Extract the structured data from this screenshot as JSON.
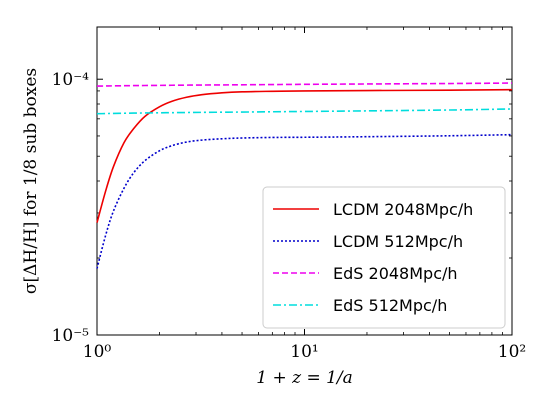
{
  "chart_data": {
    "type": "line",
    "xlabel": "1 + z = 1/a",
    "ylabel": "σ[ΔH/H] for 1/8 sub boxes",
    "xscale": "log",
    "yscale": "log",
    "xlim": [
      1,
      100
    ],
    "ylim": [
      1e-05,
      0.00016
    ],
    "grid": false,
    "legend_position": "lower-right",
    "x_ticks": [
      {
        "value": 1,
        "label": "10⁰"
      },
      {
        "value": 10,
        "label": "10¹"
      },
      {
        "value": 100,
        "label": "10²"
      }
    ],
    "y_ticks": [
      {
        "value": 1e-05,
        "label": "10⁻⁵"
      },
      {
        "value": 0.0001,
        "label": "10⁻⁴"
      }
    ],
    "x": [
      1.0,
      1.1,
      1.2,
      1.35,
      1.5,
      1.7,
      2.0,
      2.3,
      2.7,
      3.2,
      4,
      5,
      7,
      10,
      20,
      50,
      100
    ],
    "series": [
      {
        "name": "LCDM 2048Mpc/h",
        "color": "#ee0000",
        "dash": "solid",
        "values": [
          2.75e-05,
          3.65e-05,
          4.55e-05,
          5.65e-05,
          6.4e-05,
          7.15e-05,
          7.8e-05,
          8.2e-05,
          8.5e-05,
          8.7e-05,
          8.85e-05,
          8.93e-05,
          8.97e-05,
          9e-05,
          9.03e-05,
          9.06e-05,
          9.1e-05
        ]
      },
      {
        "name": "LCDM 512Mpc/h",
        "color": "#0000cc",
        "dash": "dotted",
        "values": [
          1.82e-05,
          2.45e-05,
          3.05e-05,
          3.75e-05,
          4.3e-05,
          4.8e-05,
          5.25e-05,
          5.5e-05,
          5.68e-05,
          5.78e-05,
          5.85e-05,
          5.89e-05,
          5.92e-05,
          5.93e-05,
          5.96e-05,
          6.01e-05,
          6.07e-05
        ]
      },
      {
        "name": "EdS 2048Mpc/h",
        "color": "#ee00ee",
        "dash": "dashed",
        "values": [
          9.4e-05,
          9.41e-05,
          9.42e-05,
          9.43e-05,
          9.44e-05,
          9.45e-05,
          9.46e-05,
          9.47e-05,
          9.48e-05,
          9.49e-05,
          9.5e-05,
          9.51e-05,
          9.53e-05,
          9.55e-05,
          9.58e-05,
          9.62e-05,
          9.66e-05
        ]
      },
      {
        "name": "EdS 512Mpc/h",
        "color": "#00dddd",
        "dash": "dashdot",
        "values": [
          7.33e-05,
          7.34e-05,
          7.35e-05,
          7.36e-05,
          7.37e-05,
          7.38e-05,
          7.39e-05,
          7.4e-05,
          7.41e-05,
          7.42e-05,
          7.43e-05,
          7.44e-05,
          7.46e-05,
          7.48e-05,
          7.52e-05,
          7.58e-05,
          7.65e-05
        ]
      }
    ]
  }
}
